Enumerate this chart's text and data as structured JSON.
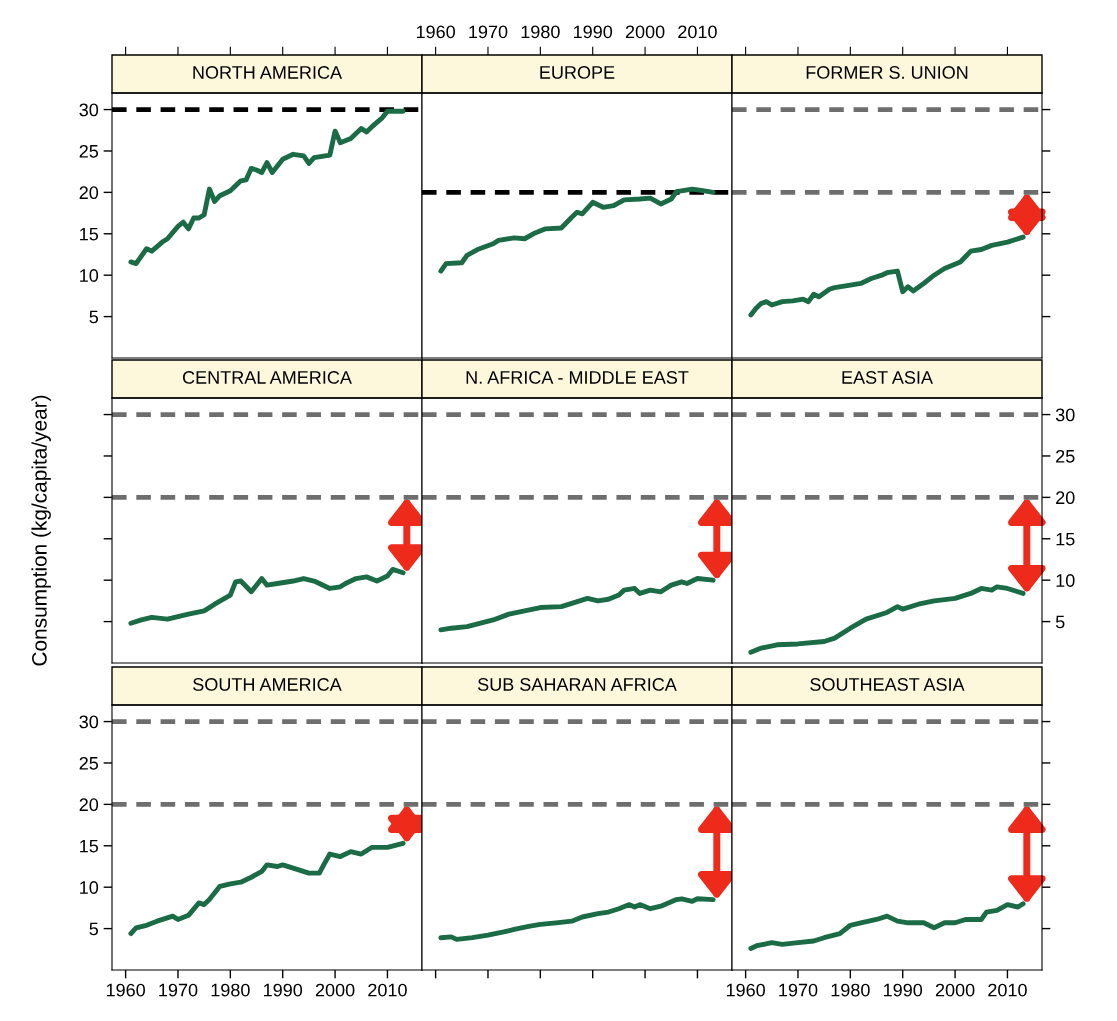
{
  "chart_data": [
    {
      "type": "line",
      "title": "NORTH AMERICA",
      "xlim": [
        1957.4,
        2016.6
      ],
      "xticks": [
        1960,
        1970,
        1980,
        1990,
        2000,
        2010
      ],
      "ylim": [
        0,
        32
      ],
      "yticks": [
        5,
        10,
        15,
        20,
        25,
        30
      ],
      "tick_labels": "y",
      "series": [
        {
          "color": "#1b6b47",
          "x": [
            1961,
            1962,
            1964,
            1965,
            1967,
            1968,
            1970,
            1971,
            1972,
            1973,
            1974,
            1975,
            1976,
            1977,
            1978,
            1980,
            1982,
            1983,
            1984,
            1985,
            1986,
            1987,
            1988,
            1990,
            1992,
            1994,
            1995,
            1996,
            1999,
            2000,
            2001,
            2003,
            2005,
            2006,
            2007,
            2009,
            2010,
            2013
          ],
          "values": [
            11.6,
            11.4,
            13.2,
            12.9,
            14.0,
            14.4,
            15.9,
            16.4,
            15.6,
            16.9,
            16.9,
            17.3,
            20.4,
            18.9,
            19.6,
            20.2,
            21.4,
            21.5,
            22.9,
            22.7,
            22.4,
            23.6,
            22.4,
            24.0,
            24.6,
            24.4,
            23.5,
            24.2,
            24.5,
            27.4,
            26.0,
            26.5,
            27.7,
            27.3,
            27.9,
            29.0,
            29.8,
            29.8
          ]
        }
      ],
      "ref_lines": [
        {
          "axis": "y",
          "value": 30,
          "color": "#000000",
          "line_style": "dashed"
        }
      ]
    },
    {
      "type": "line",
      "title": "EUROPE",
      "xlim": [
        1957.4,
        2016.6
      ],
      "xticks": [
        1960,
        1970,
        1980,
        1990,
        2000,
        2010
      ],
      "ylim": [
        0,
        32
      ],
      "yticks": [
        5,
        10,
        15,
        20,
        25,
        30
      ],
      "tick_labels": "x",
      "series": [
        {
          "color": "#1b6b47",
          "x": [
            1961,
            1962,
            1965,
            1966,
            1968,
            1971,
            1972,
            1975,
            1977,
            1979,
            1981,
            1984,
            1986,
            1987,
            1988,
            1990,
            1992,
            1994,
            1996,
            1999,
            2001,
            2003,
            2005,
            2006,
            2009,
            2011,
            2013
          ],
          "values": [
            10.5,
            11.4,
            11.5,
            12.4,
            13.1,
            13.8,
            14.2,
            14.5,
            14.4,
            15.1,
            15.6,
            15.7,
            17.0,
            17.6,
            17.4,
            18.8,
            18.2,
            18.4,
            19.1,
            19.2,
            19.3,
            18.6,
            19.2,
            20.1,
            20.4,
            20.2,
            20.0
          ]
        }
      ],
      "ref_lines": [
        {
          "axis": "y",
          "value": 20,
          "color": "#000000",
          "line_style": "dashed"
        }
      ]
    },
    {
      "type": "line",
      "title": "FORMER S. UNION",
      "xlim": [
        1957.4,
        2016.6
      ],
      "xticks": [
        1960,
        1970,
        1980,
        1990,
        2000,
        2010
      ],
      "ylim": [
        0,
        32
      ],
      "yticks": [
        5,
        10,
        15,
        20,
        25,
        30
      ],
      "tick_labels": false,
      "series": [
        {
          "color": "#1b6b47",
          "x": [
            1961,
            1962,
            1963,
            1964,
            1965,
            1967,
            1969,
            1971,
            1972,
            1973,
            1974,
            1976,
            1977,
            1980,
            1982,
            1984,
            1986,
            1987,
            1989,
            1990,
            1991,
            1992,
            1994,
            1996,
            1998,
            2001,
            2003,
            2005,
            2007,
            2010,
            2013
          ],
          "values": [
            5.2,
            6.0,
            6.6,
            6.8,
            6.4,
            6.8,
            6.9,
            7.1,
            6.8,
            7.7,
            7.4,
            8.3,
            8.5,
            8.8,
            9.0,
            9.6,
            10.0,
            10.3,
            10.5,
            8.0,
            8.6,
            8.1,
            9.0,
            10.0,
            10.8,
            11.6,
            12.9,
            13.1,
            13.6,
            14.0,
            14.6
          ]
        }
      ],
      "ref_lines": [
        {
          "axis": "y",
          "value": 30,
          "color": "#6e6e6e",
          "line_style": "dashed"
        },
        {
          "axis": "y",
          "value": 20,
          "color": "#6e6e6e",
          "line_style": "dashed"
        }
      ]
    },
    {
      "type": "line",
      "title": "CENTRAL AMERICA",
      "ylabel": "Consumption (kg/capita/year)",
      "xlim": [
        1957.4,
        2016.6
      ],
      "xticks": [
        1960,
        1970,
        1980,
        1990,
        2000,
        2010
      ],
      "ylim": [
        0,
        32
      ],
      "yticks": [
        5,
        10,
        15,
        20,
        25,
        30
      ],
      "tick_labels": false,
      "series": [
        {
          "color": "#1b6b47",
          "x": [
            1961,
            1963,
            1965,
            1968,
            1970,
            1972,
            1975,
            1977,
            1980,
            1981,
            1982,
            1984,
            1986,
            1987,
            1989,
            1992,
            1994,
            1996,
            1999,
            2001,
            2002,
            2004,
            2006,
            2008,
            2010,
            2011,
            2013
          ],
          "values": [
            4.8,
            5.2,
            5.5,
            5.3,
            5.6,
            5.9,
            6.3,
            7.1,
            8.2,
            9.8,
            9.9,
            8.6,
            10.2,
            9.4,
            9.6,
            9.9,
            10.2,
            9.9,
            9.0,
            9.2,
            9.6,
            10.2,
            10.4,
            9.9,
            10.5,
            11.3,
            10.9
          ]
        }
      ],
      "ref_lines": [
        {
          "axis": "y",
          "value": 30,
          "color": "#6e6e6e",
          "line_style": "dashed"
        },
        {
          "axis": "y",
          "value": 20,
          "color": "#6e6e6e",
          "line_style": "dashed"
        }
      ]
    },
    {
      "type": "line",
      "title": "N. AFRICA - MIDDLE EAST",
      "xlim": [
        1957.4,
        2016.6
      ],
      "xticks": [
        1960,
        1970,
        1980,
        1990,
        2000,
        2010
      ],
      "ylim": [
        0,
        32
      ],
      "yticks": [
        5,
        10,
        15,
        20,
        25,
        30
      ],
      "tick_labels": false,
      "series": [
        {
          "color": "#1b6b47",
          "x": [
            1961,
            1963,
            1966,
            1971,
            1974,
            1977,
            1980,
            1984,
            1986,
            1989,
            1991,
            1993,
            1995,
            1996,
            1998,
            1999,
            2001,
            2003,
            2005,
            2007,
            2008,
            2010,
            2013
          ],
          "values": [
            4.0,
            4.2,
            4.4,
            5.2,
            5.9,
            6.3,
            6.7,
            6.8,
            7.2,
            7.8,
            7.5,
            7.7,
            8.2,
            8.8,
            9.0,
            8.4,
            8.8,
            8.6,
            9.4,
            9.8,
            9.6,
            10.2,
            10.0
          ]
        }
      ],
      "ref_lines": [
        {
          "axis": "y",
          "value": 30,
          "color": "#6e6e6e",
          "line_style": "dashed"
        },
        {
          "axis": "y",
          "value": 20,
          "color": "#6e6e6e",
          "line_style": "dashed"
        }
      ]
    },
    {
      "type": "line",
      "title": "EAST ASIA",
      "xlim": [
        1957.4,
        2016.6
      ],
      "xticks": [
        1960,
        1970,
        1980,
        1990,
        2000,
        2010
      ],
      "ylim": [
        0,
        32
      ],
      "yticks": [
        5,
        10,
        15,
        20,
        25,
        30
      ],
      "tick_labels": "y",
      "series": [
        {
          "color": "#1b6b47",
          "x": [
            1961,
            1963,
            1966,
            1970,
            1975,
            1977,
            1980,
            1983,
            1987,
            1989,
            1990,
            1993,
            1996,
            2000,
            2003,
            2005,
            2007,
            2008,
            2010,
            2012,
            2013
          ],
          "values": [
            1.3,
            1.8,
            2.2,
            2.3,
            2.6,
            3.0,
            4.2,
            5.3,
            6.1,
            6.8,
            6.5,
            7.1,
            7.5,
            7.8,
            8.4,
            9.0,
            8.8,
            9.2,
            9.0,
            8.6,
            8.4
          ]
        }
      ],
      "ref_lines": [
        {
          "axis": "y",
          "value": 30,
          "color": "#6e6e6e",
          "line_style": "dashed"
        },
        {
          "axis": "y",
          "value": 20,
          "color": "#6e6e6e",
          "line_style": "dashed"
        }
      ]
    },
    {
      "type": "line",
      "title": "SOUTH AMERICA",
      "xlim": [
        1957.4,
        2016.6
      ],
      "xticks": [
        1960,
        1970,
        1980,
        1990,
        2000,
        2010
      ],
      "ylim": [
        0,
        32
      ],
      "yticks": [
        5,
        10,
        15,
        20,
        25,
        30
      ],
      "series": [
        {
          "color": "#1b6b47",
          "x": [
            1961,
            1962,
            1964,
            1966,
            1969,
            1970,
            1972,
            1974,
            1975,
            1976,
            1978,
            1980,
            1982,
            1984,
            1986,
            1987,
            1989,
            1990,
            1992,
            1995,
            1997,
            1998,
            1999,
            2001,
            2003,
            2005,
            2007,
            2010,
            2013
          ],
          "values": [
            4.4,
            5.1,
            5.4,
            5.9,
            6.5,
            6.1,
            6.6,
            8.1,
            7.9,
            8.5,
            10.1,
            10.4,
            10.6,
            11.2,
            11.9,
            12.7,
            12.5,
            12.7,
            12.3,
            11.7,
            11.7,
            12.9,
            14.0,
            13.7,
            14.3,
            14.0,
            14.8,
            14.8,
            15.3
          ]
        }
      ],
      "ref_lines": [
        {
          "axis": "y",
          "value": 30,
          "color": "#6e6e6e",
          "line_style": "dashed"
        },
        {
          "axis": "y",
          "value": 20,
          "color": "#6e6e6e",
          "line_style": "dashed"
        }
      ]
    },
    {
      "type": "line",
      "title": "SUB SAHARAN AFRICA",
      "xlim": [
        1957.4,
        2016.6
      ],
      "xticks": [
        1960,
        1970,
        1980,
        1990,
        2000,
        2010
      ],
      "ylim": [
        0,
        32
      ],
      "yticks": [
        5,
        10,
        15,
        20,
        25,
        30
      ],
      "tick_labels": false,
      "series": [
        {
          "color": "#1b6b47",
          "x": [
            1961,
            1963,
            1964,
            1967,
            1970,
            1973,
            1975,
            1978,
            1980,
            1983,
            1986,
            1988,
            1991,
            1993,
            1995,
            1997,
            1998,
            1999,
            2001,
            2003,
            2006,
            2007,
            2009,
            2010,
            2013
          ],
          "values": [
            3.9,
            4.0,
            3.7,
            3.9,
            4.2,
            4.6,
            4.9,
            5.3,
            5.5,
            5.7,
            5.9,
            6.4,
            6.8,
            7.0,
            7.4,
            7.9,
            7.6,
            7.9,
            7.4,
            7.7,
            8.5,
            8.6,
            8.3,
            8.6,
            8.5
          ]
        }
      ],
      "ref_lines": [
        {
          "axis": "y",
          "value": 30,
          "color": "#6e6e6e",
          "line_style": "dashed"
        },
        {
          "axis": "y",
          "value": 20,
          "color": "#6e6e6e",
          "line_style": "dashed"
        }
      ]
    },
    {
      "type": "line",
      "title": "SOUTHEAST ASIA",
      "xlim": [
        1957.4,
        2016.6
      ],
      "xticks": [
        1960,
        1970,
        1980,
        1990,
        2000,
        2010
      ],
      "ylim": [
        0,
        32
      ],
      "yticks": [
        5,
        10,
        15,
        20,
        25,
        30
      ],
      "tick_labels": "x",
      "series": [
        {
          "color": "#1b6b47",
          "x": [
            1961,
            1962,
            1965,
            1967,
            1970,
            1973,
            1975,
            1978,
            1980,
            1982,
            1985,
            1987,
            1989,
            1991,
            1994,
            1996,
            1998,
            2000,
            2002,
            2005,
            2006,
            2008,
            2010,
            2012,
            2013
          ],
          "values": [
            2.6,
            2.9,
            3.3,
            3.1,
            3.3,
            3.5,
            3.9,
            4.4,
            5.4,
            5.7,
            6.1,
            6.5,
            5.9,
            5.7,
            5.7,
            5.1,
            5.7,
            5.7,
            6.1,
            6.1,
            7.0,
            7.2,
            7.9,
            7.6,
            8.0
          ]
        }
      ],
      "ref_lines": [
        {
          "axis": "y",
          "value": 30,
          "color": "#6e6e6e",
          "line_style": "dashed"
        },
        {
          "axis": "y",
          "value": 20,
          "color": "#6e6e6e",
          "line_style": "dashed"
        }
      ]
    }
  ]
}
